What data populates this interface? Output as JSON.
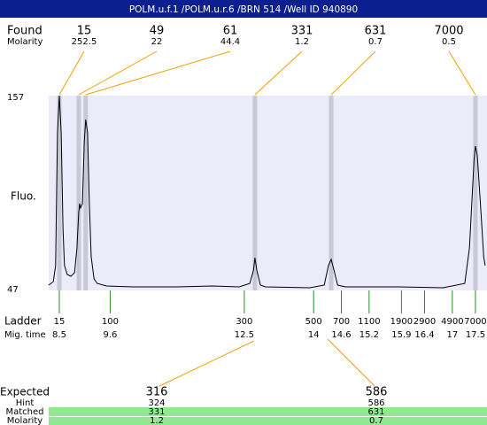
{
  "chart_data": {
    "type": "line",
    "title": "POLM.u.f.1 /POLM.u.r.6 /BRN 514 /Well ID 940890",
    "found": {
      "label": "Found",
      "molarity_label": "Molarity",
      "peaks": [
        {
          "size": 15,
          "molarity": 252.5,
          "time": 8.5
        },
        {
          "size": 49,
          "molarity": 22,
          "time": 8.92
        },
        {
          "size": 61,
          "molarity": 44.4,
          "time": 9.07
        },
        {
          "size": 331,
          "molarity": 1.2,
          "time": 12.73
        },
        {
          "size": 631,
          "molarity": 0.7,
          "time": 14.38
        },
        {
          "size": 7000,
          "molarity": 0.5,
          "time": 17.5
        }
      ]
    },
    "y_label": "Fluo.",
    "xlim": [
      8.27,
      17.75
    ],
    "ylim": [
      47,
      157
    ],
    "yticks": [
      157,
      47
    ],
    "x": [
      8.27,
      8.37,
      8.42,
      8.46,
      8.5,
      8.54,
      8.58,
      8.61,
      8.67,
      8.75,
      8.83,
      8.88,
      8.92,
      8.94,
      8.96,
      9.0,
      9.04,
      9.07,
      9.11,
      9.15,
      9.19,
      9.25,
      9.32,
      9.52,
      10.09,
      11.05,
      11.81,
      12.39,
      12.62,
      12.7,
      12.73,
      12.77,
      12.85,
      12.96,
      13.92,
      14.23,
      14.32,
      14.38,
      14.44,
      14.52,
      14.69,
      15.84,
      16.8,
      17.27,
      17.37,
      17.47,
      17.5,
      17.54,
      17.62,
      17.68,
      17.71
    ],
    "y": [
      48.5,
      50.5,
      59.7,
      135.7,
      157,
      135.7,
      80,
      59.7,
      54.6,
      53.6,
      55.6,
      69.8,
      90.1,
      95.2,
      92.6,
      95.2,
      130.7,
      143.3,
      135.7,
      95.2,
      64.7,
      52.1,
      49.5,
      48,
      47.5,
      47.5,
      48,
      47.5,
      49.5,
      57.1,
      64.2,
      57.1,
      48.5,
      47.5,
      47,
      48.5,
      59.7,
      63.2,
      57.1,
      48.5,
      47.5,
      47.5,
      47,
      49.5,
      69.8,
      120.5,
      128.1,
      123.1,
      90.1,
      64.7,
      59.7
    ],
    "color": "#000000",
    "ladder": {
      "label": "Ladder",
      "time_label": "Mig. time",
      "sizes": [
        15,
        100,
        300,
        500,
        700,
        1100,
        1900,
        2900,
        4900,
        7000
      ],
      "times": [
        8.5,
        9.6,
        12.5,
        14,
        14.6,
        15.2,
        15.9,
        16.4,
        17,
        17.5
      ]
    },
    "expected": {
      "rows": [
        {
          "label": "Expected",
          "values": [
            316,
            586
          ]
        },
        {
          "label": "Hint",
          "values": [
            324,
            586
          ]
        },
        {
          "label": "Matched",
          "values": [
            331,
            631
          ]
        },
        {
          "label": "Molarity",
          "values": [
            1.2,
            0.7
          ]
        }
      ]
    }
  }
}
